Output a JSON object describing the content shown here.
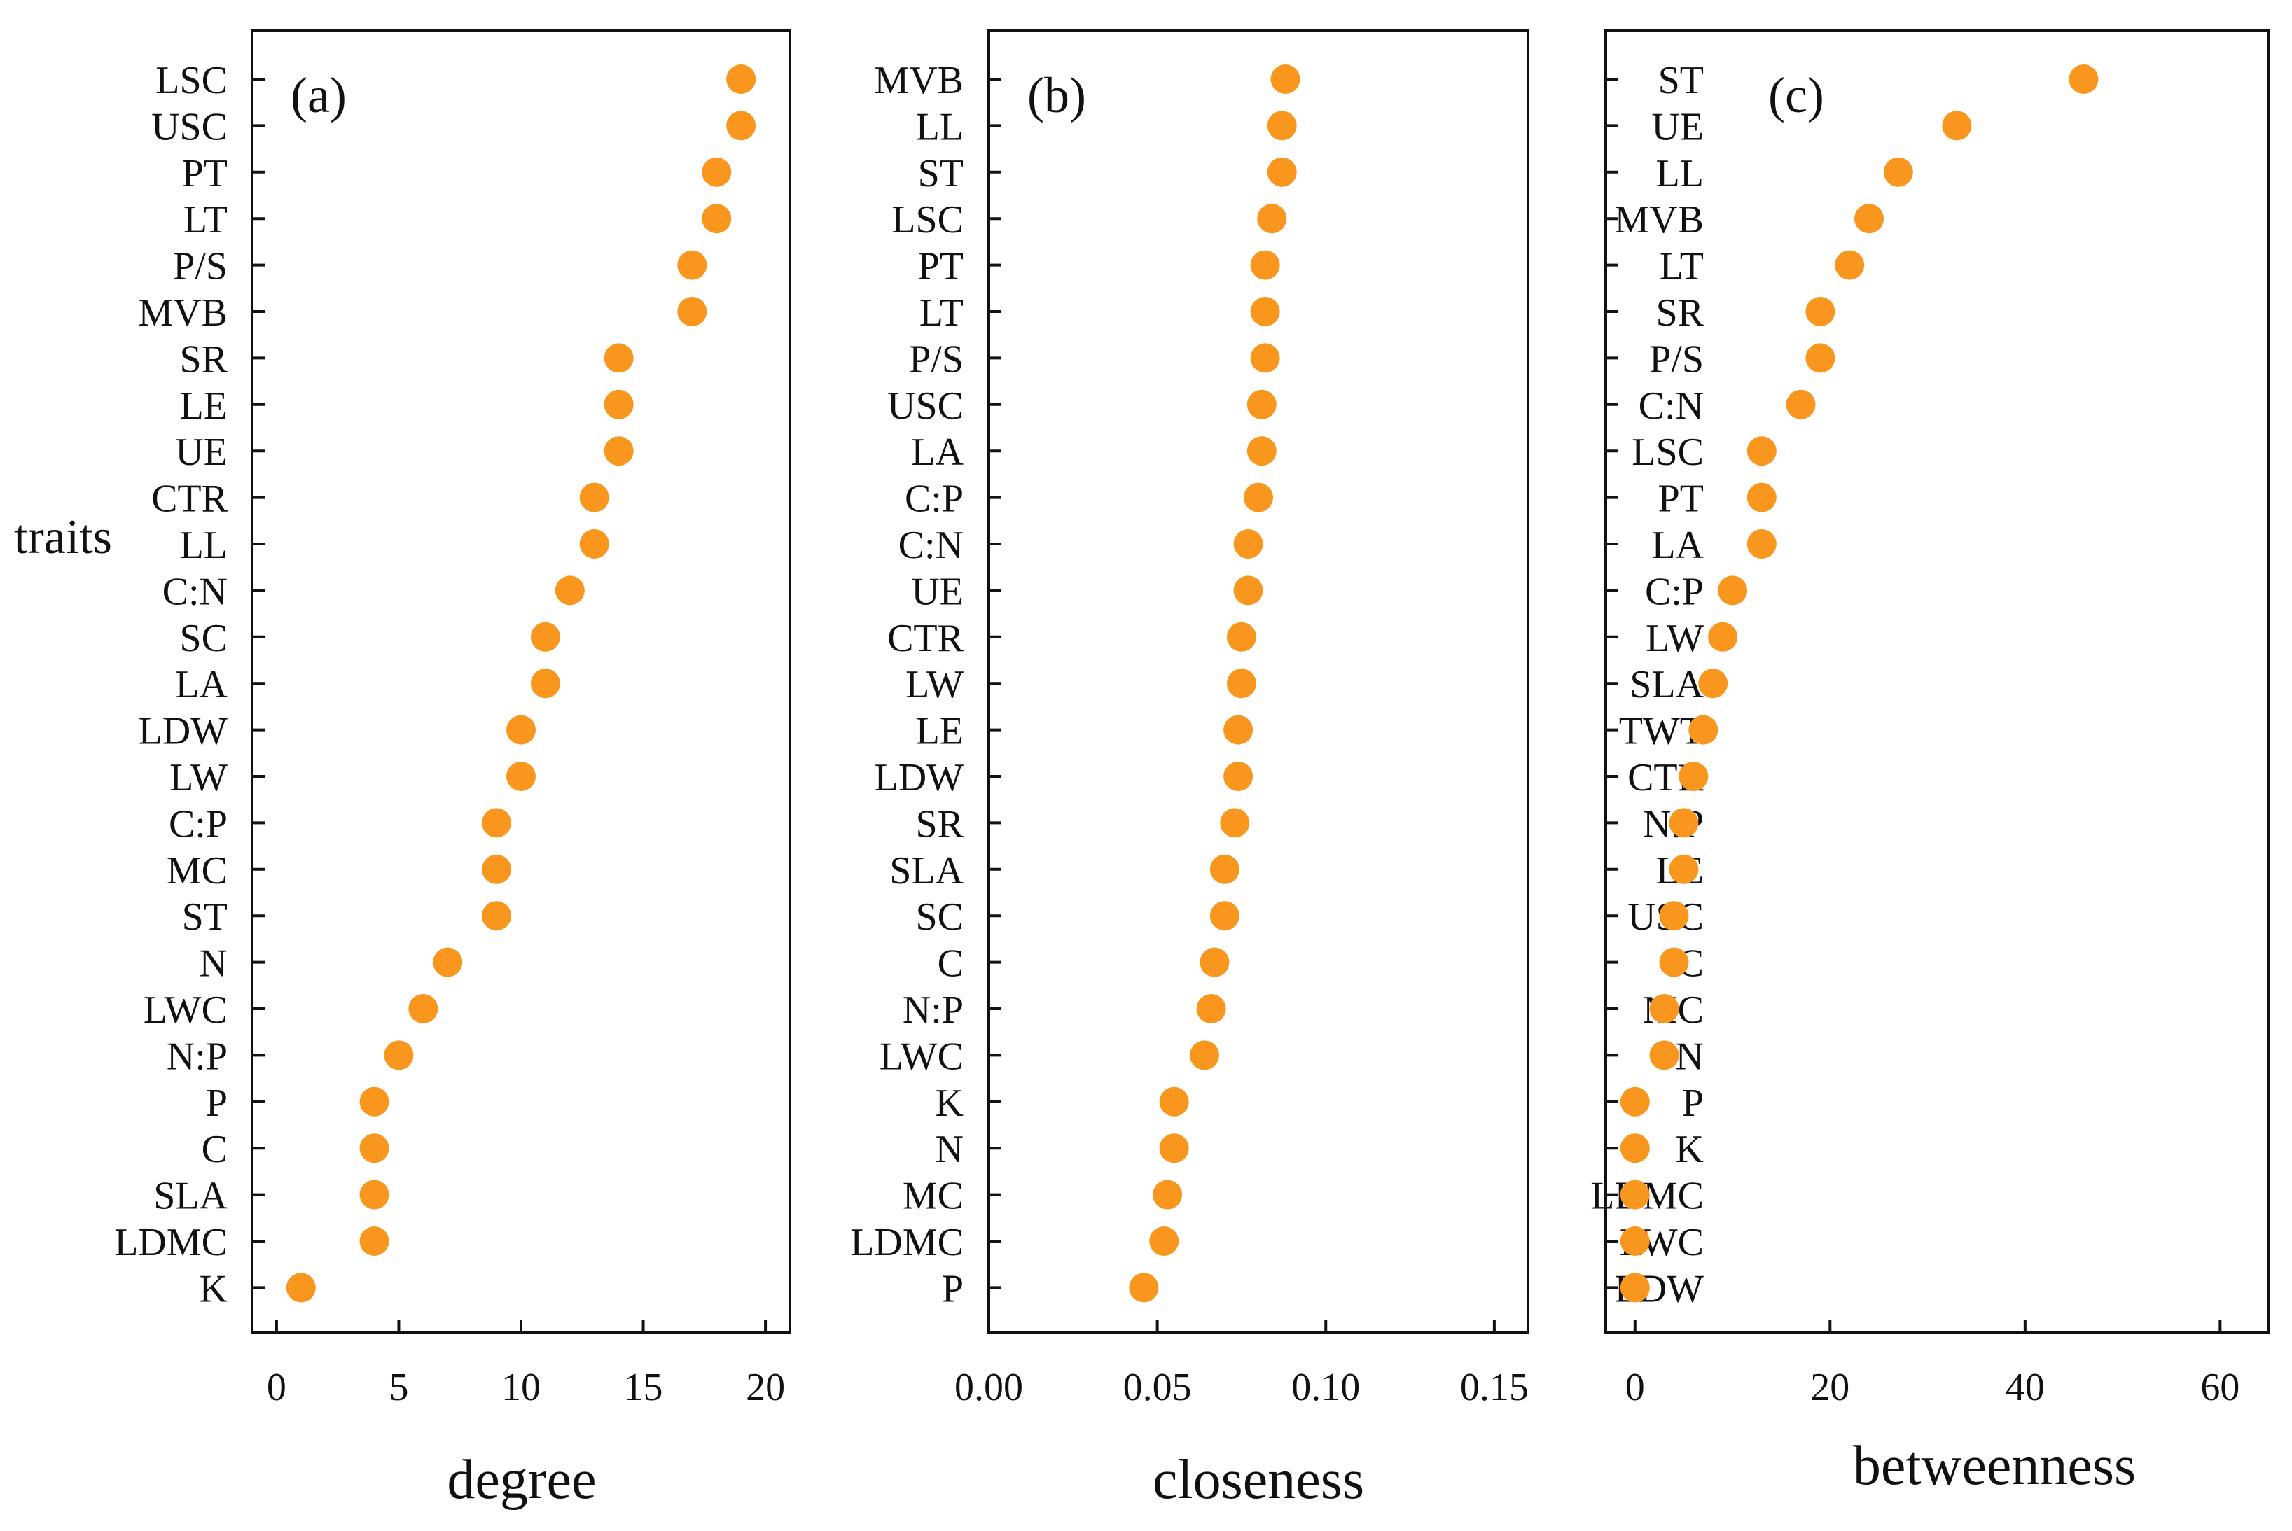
{
  "figure": {
    "y_axis_label": "traits"
  },
  "style": {
    "marker_color": "#F8961E",
    "axis_color": "#111111"
  },
  "chart_data": [
    {
      "type": "scatter",
      "panel_label": "(a)",
      "xlabel": "degree",
      "ylabel": "traits",
      "xlim": [
        -1,
        21
      ],
      "xticks": [
        0,
        5,
        10,
        15,
        20
      ],
      "tick_labels": [
        "0",
        "5",
        "10",
        "15",
        "20"
      ],
      "grid": false,
      "categories": [
        "LSC",
        "USC",
        "PT",
        "LT",
        "P/S",
        "MVB",
        "SR",
        "LE",
        "UE",
        "CTR",
        "LL",
        "C:N",
        "SC",
        "LA",
        "LDW",
        "LW",
        "C:P",
        "MC",
        "ST",
        "N",
        "LWC",
        "N:P",
        "P",
        "C",
        "SLA",
        "LDMC",
        "K"
      ],
      "values": [
        19,
        19,
        18,
        18,
        17,
        17,
        14,
        14,
        14,
        13,
        13,
        12,
        11,
        11,
        10,
        10,
        9,
        9,
        9,
        7,
        6,
        5,
        4,
        4,
        4,
        4,
        1
      ]
    },
    {
      "type": "scatter",
      "panel_label": "(b)",
      "xlabel": "closeness",
      "xlim": [
        0,
        0.16
      ],
      "xticks": [
        0,
        0.05,
        0.1,
        0.15
      ],
      "tick_labels": [
        "0.00",
        "0.05",
        "0.10",
        "0.15"
      ],
      "grid": false,
      "categories": [
        "MVB",
        "LL",
        "ST",
        "LSC",
        "PT",
        "LT",
        "P/S",
        "USC",
        "LA",
        "C:P",
        "C:N",
        "UE",
        "CTR",
        "LW",
        "LE",
        "LDW",
        "SR",
        "SLA",
        "SC",
        "C",
        "N:P",
        "LWC",
        "K",
        "N",
        "MC",
        "LDMC",
        "P"
      ],
      "values": [
        0.088,
        0.087,
        0.087,
        0.084,
        0.082,
        0.082,
        0.082,
        0.081,
        0.081,
        0.08,
        0.077,
        0.077,
        0.075,
        0.075,
        0.074,
        0.074,
        0.073,
        0.07,
        0.07,
        0.067,
        0.066,
        0.064,
        0.055,
        0.055,
        0.053,
        0.052,
        0.046
      ]
    },
    {
      "type": "scatter",
      "panel_label": "(c)",
      "xlabel": "betweenness",
      "xlim": [
        -3,
        65
      ],
      "xticks": [
        0,
        20,
        40,
        60
      ],
      "tick_labels": [
        "0",
        "20",
        "40",
        "60"
      ],
      "grid": false,
      "categories": [
        "ST",
        "UE",
        "LL",
        "MVB",
        "LT",
        "SR",
        "P/S",
        "C:N",
        "LSC",
        "PT",
        "LA",
        "C:P",
        "LW",
        "SLA",
        "TWT",
        "CTR",
        "N:P",
        "LE",
        "USC",
        "C",
        "MC",
        "N",
        "P",
        "K",
        "LDMC",
        "LWC",
        "LDW"
      ],
      "values": [
        46,
        33,
        27,
        24,
        22,
        19,
        19,
        17,
        13,
        13,
        13,
        10,
        9,
        8,
        7,
        6,
        5,
        5,
        4,
        4,
        3,
        3,
        0,
        0,
        0,
        0,
        0
      ]
    }
  ]
}
